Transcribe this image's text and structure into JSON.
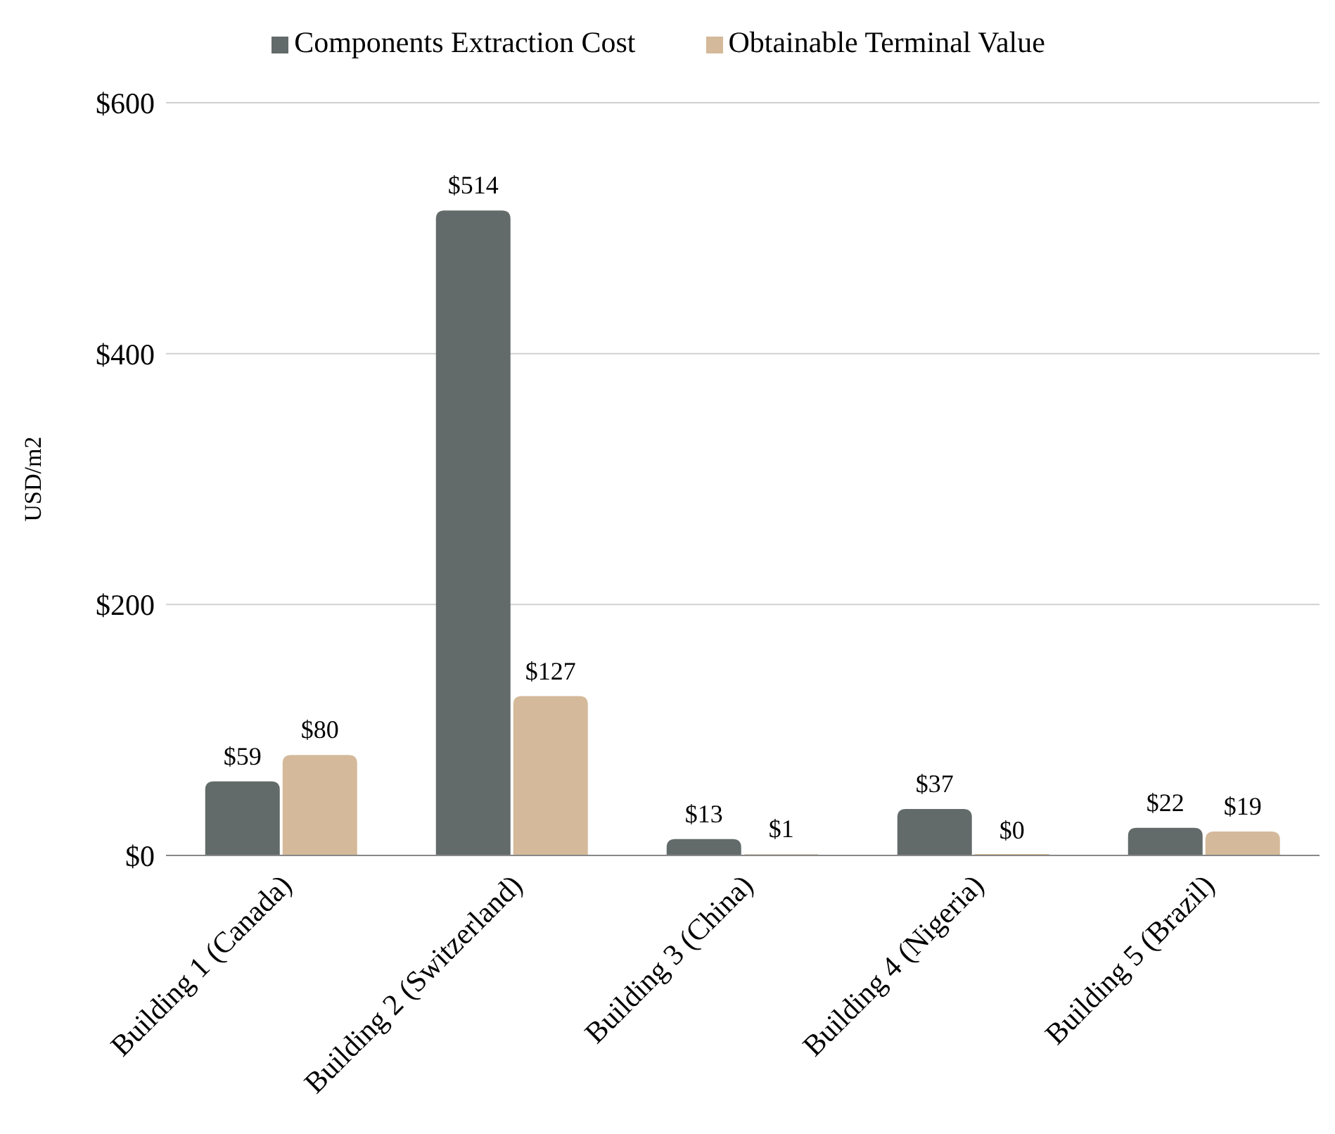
{
  "chart_data": {
    "type": "bar",
    "categories": [
      "Building 1 (Canada)",
      "Building 2 (Switzerland)",
      "Building 3 (China)",
      "Building 4 (Nigeria)",
      "Building 5 (Brazil)"
    ],
    "series": [
      {
        "name": "Components Extraction Cost",
        "color": "#626b69",
        "values": [
          59,
          514,
          13,
          37,
          22
        ],
        "value_labels": [
          "$59",
          "$514",
          "$13",
          "$37",
          "$22"
        ]
      },
      {
        "name": "Obtainable Terminal Value",
        "color": "#d4b99a",
        "values": [
          80,
          127,
          1,
          0,
          19
        ],
        "value_labels": [
          "$80",
          "$127",
          "$1",
          "$0",
          "$19"
        ]
      }
    ],
    "ylabel": "USD/m2",
    "ylim": [
      0,
      600
    ],
    "yticks": [
      {
        "value": 0,
        "label": "$0"
      },
      {
        "value": 200,
        "label": "$200"
      },
      {
        "value": 400,
        "label": "$400"
      },
      {
        "value": 600,
        "label": "$600"
      }
    ],
    "grid": "y",
    "legend": "top"
  }
}
